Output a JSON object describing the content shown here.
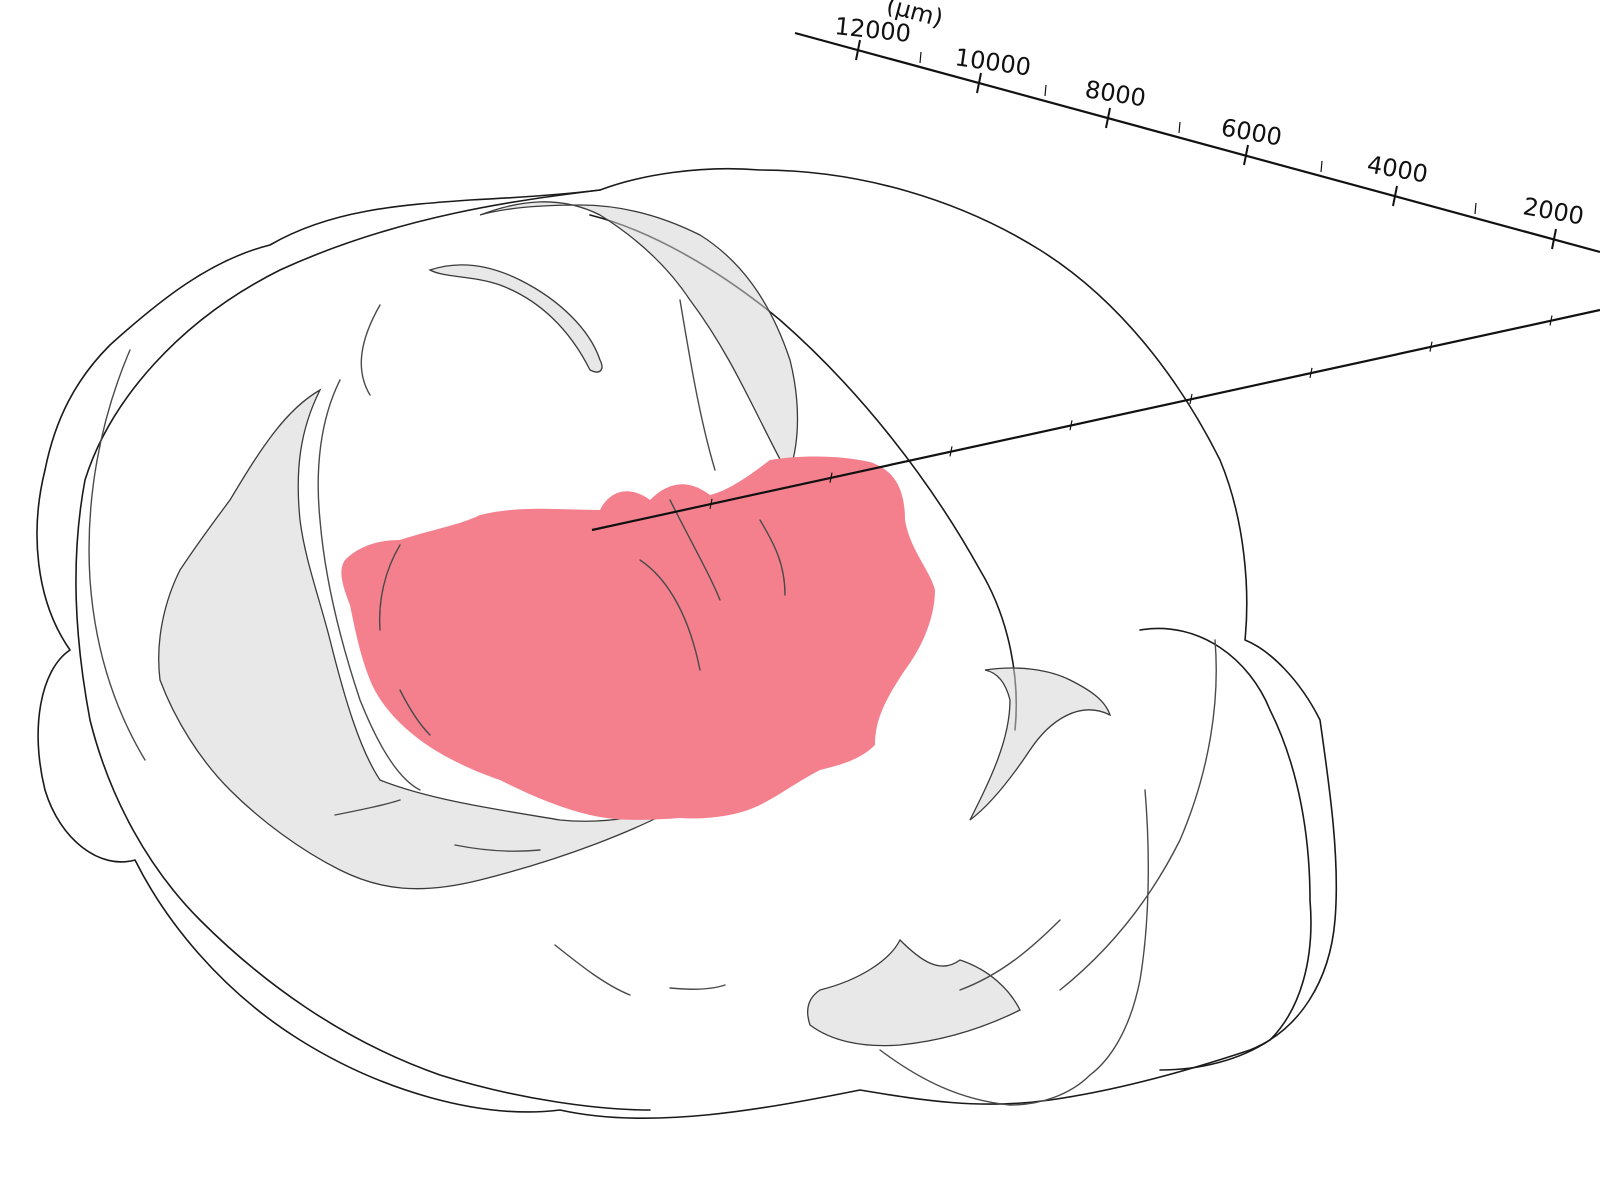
{
  "viewer": {
    "colors": {
      "background": "#ffffff",
      "brain_fill": "#e6e6e6",
      "brain_stroke": "#1a1a1a",
      "region_fill": "#f4808e",
      "axis": "#111111"
    },
    "axis": {
      "unit_label": "(µm)",
      "tick_labels": [
        "12000",
        "10000",
        "8000",
        "6000",
        "4000",
        "2000"
      ]
    },
    "highlighted_region": {
      "color": "#f4808e"
    }
  }
}
